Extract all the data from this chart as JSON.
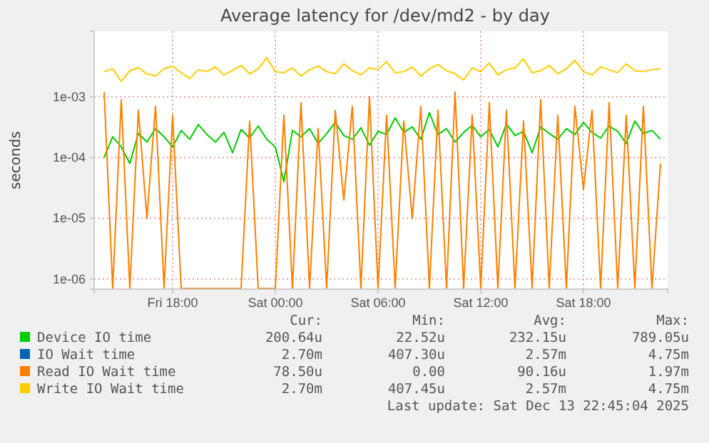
{
  "chart_data": {
    "type": "line",
    "title": "Average latency for /dev/md2 - by day",
    "ylabel": "seconds",
    "log": "y",
    "xlim": [
      "2025-12-12T13:25",
      "2025-12-13T22:55"
    ],
    "xticks": [
      {
        "value": "2025-12-12T18:00",
        "label": "Fri 18:00"
      },
      {
        "value": "2025-12-13T00:00",
        "label": "Sat 00:00"
      },
      {
        "value": "2025-12-13T06:00",
        "label": "Sat 06:00"
      },
      {
        "value": "2025-12-13T12:00",
        "label": "Sat 12:00"
      },
      {
        "value": "2025-12-13T18:00",
        "label": "Sat 18:00"
      }
    ],
    "ylim": [
      6.8e-07,
      0.012
    ],
    "yticks": [
      {
        "value": 1e-06,
        "label": "1e-06"
      },
      {
        "value": 1e-05,
        "label": "1e-05"
      },
      {
        "value": 0.0001,
        "label": "1e-04"
      },
      {
        "value": 0.001,
        "label": "1e-03"
      }
    ],
    "grid": true,
    "legend": "bottom",
    "line_style": "solid",
    "marker": "none",
    "x": [
      "2025-12-12T14:00",
      "2025-12-12T14:30",
      "2025-12-12T15:00",
      "2025-12-12T15:30",
      "2025-12-12T16:00",
      "2025-12-12T16:30",
      "2025-12-12T17:00",
      "2025-12-12T17:30",
      "2025-12-12T18:00",
      "2025-12-12T18:30",
      "2025-12-12T19:00",
      "2025-12-12T19:30",
      "2025-12-12T20:00",
      "2025-12-12T20:30",
      "2025-12-12T21:00",
      "2025-12-12T21:30",
      "2025-12-12T22:00",
      "2025-12-12T22:30",
      "2025-12-12T23:00",
      "2025-12-12T23:30",
      "2025-12-13T00:00",
      "2025-12-13T00:30",
      "2025-12-13T01:00",
      "2025-12-13T01:30",
      "2025-12-13T02:00",
      "2025-12-13T02:30",
      "2025-12-13T03:00",
      "2025-12-13T03:30",
      "2025-12-13T04:00",
      "2025-12-13T04:30",
      "2025-12-13T05:00",
      "2025-12-13T05:30",
      "2025-12-13T06:00",
      "2025-12-13T06:30",
      "2025-12-13T07:00",
      "2025-12-13T07:30",
      "2025-12-13T08:00",
      "2025-12-13T08:30",
      "2025-12-13T09:00",
      "2025-12-13T09:30",
      "2025-12-13T10:00",
      "2025-12-13T10:30",
      "2025-12-13T11:00",
      "2025-12-13T11:30",
      "2025-12-13T12:00",
      "2025-12-13T12:30",
      "2025-12-13T13:00",
      "2025-12-13T13:30",
      "2025-12-13T14:00",
      "2025-12-13T14:30",
      "2025-12-13T15:00",
      "2025-12-13T15:30",
      "2025-12-13T16:00",
      "2025-12-13T16:30",
      "2025-12-13T17:00",
      "2025-12-13T17:30",
      "2025-12-13T18:00",
      "2025-12-13T18:30",
      "2025-12-13T19:00",
      "2025-12-13T19:30",
      "2025-12-13T20:00",
      "2025-12-13T20:30",
      "2025-12-13T21:00",
      "2025-12-13T21:30",
      "2025-12-13T22:00",
      "2025-12-13T22:30"
    ],
    "series": [
      {
        "name": "Device IO time",
        "color": "#00cc00",
        "values": [
          0.0001,
          0.00022,
          0.00015,
          8e-05,
          0.00025,
          0.00018,
          0.0003,
          0.00022,
          0.00015,
          0.00028,
          0.0002,
          0.00035,
          0.00024,
          0.00018,
          0.00026,
          0.00012,
          0.00029,
          0.00021,
          0.00033,
          0.0002,
          0.00015,
          4e-05,
          0.00028,
          0.00022,
          0.0003,
          0.00017,
          0.00025,
          0.00038,
          0.00023,
          0.0002,
          0.00031,
          0.00016,
          0.00027,
          0.00024,
          0.00045,
          0.00026,
          0.00032,
          0.0002,
          0.00055,
          0.00024,
          0.0003,
          0.00018,
          0.00026,
          0.00034,
          0.00022,
          0.00029,
          0.00015,
          0.00036,
          0.00023,
          0.00027,
          0.00012,
          0.00032,
          0.00025,
          0.0002,
          0.0003,
          0.00024,
          0.00038,
          0.00026,
          0.00021,
          0.00033,
          0.00027,
          0.00017,
          0.0004,
          0.00025,
          0.00028,
          0.0002
        ]
      },
      {
        "name": "IO Wait time",
        "color": "#0066b3",
        "values": [
          null,
          null,
          null,
          null,
          null,
          null,
          null,
          null,
          null,
          null,
          null,
          null,
          null,
          null,
          null,
          null,
          null,
          null,
          null,
          null,
          null,
          null,
          null,
          null,
          null,
          null,
          null,
          null,
          null,
          null,
          null,
          null,
          null,
          null,
          null,
          null,
          null,
          null,
          null,
          null,
          null,
          null,
          null,
          null,
          null,
          null,
          null,
          null,
          null,
          null,
          null,
          null,
          null,
          null,
          null,
          null,
          null,
          null,
          null,
          null,
          null,
          null,
          null,
          null,
          null,
          null
        ]
      },
      {
        "name": "Read IO Wait time",
        "color": "#ff8000",
        "values": [
          0.0012,
          7e-07,
          0.0009,
          7e-07,
          0.0006,
          1e-05,
          0.0007,
          7e-07,
          0.0005,
          7e-07,
          7e-07,
          7e-07,
          7e-07,
          7e-07,
          7e-07,
          7e-07,
          7e-07,
          0.0004,
          7e-07,
          7e-07,
          7e-07,
          0.0005,
          7e-07,
          0.0008,
          7e-07,
          0.0003,
          7e-07,
          0.0006,
          2e-05,
          0.0007,
          7e-07,
          0.001,
          7e-07,
          0.0005,
          7e-07,
          0.0004,
          1e-05,
          0.0007,
          7e-07,
          0.0006,
          7e-07,
          0.0012,
          7e-07,
          0.0005,
          7e-07,
          0.0008,
          7e-07,
          0.0006,
          7e-07,
          0.0004,
          7e-07,
          0.0009,
          7e-07,
          0.0005,
          7e-07,
          0.0007,
          3e-05,
          0.0006,
          7e-07,
          0.0008,
          7e-07,
          0.0005,
          7e-07,
          0.0007,
          7e-07,
          8e-05
        ]
      },
      {
        "name": "Write IO Wait time",
        "color": "#ffcc00",
        "values": [
          0.0026,
          0.0029,
          0.0018,
          0.0027,
          0.003,
          0.0024,
          0.0022,
          0.0029,
          0.0032,
          0.0025,
          0.002,
          0.0028,
          0.0026,
          0.0031,
          0.0023,
          0.0027,
          0.0033,
          0.0024,
          0.0029,
          0.0044,
          0.0026,
          0.0025,
          0.003,
          0.0022,
          0.0028,
          0.0032,
          0.0026,
          0.0024,
          0.0035,
          0.0027,
          0.0023,
          0.003,
          0.0028,
          0.0038,
          0.0025,
          0.0026,
          0.0031,
          0.0022,
          0.0029,
          0.0034,
          0.0027,
          0.0024,
          0.0019,
          0.003,
          0.0026,
          0.0036,
          0.0023,
          0.0028,
          0.003,
          0.0042,
          0.0025,
          0.0027,
          0.0033,
          0.0024,
          0.0029,
          0.004,
          0.0026,
          0.0023,
          0.0031,
          0.0028,
          0.0025,
          0.0035,
          0.0027,
          0.0026,
          0.0028,
          0.0029
        ]
      }
    ],
    "annotations": [
      "Cur:",
      "Min:",
      "Avg:",
      "Max:",
      "200.64u",
      "22.52u",
      "232.15u",
      "789.05u",
      "2.70m",
      "407.30u",
      "2.57m",
      "4.75m",
      "78.50u",
      "0.00",
      "90.16u",
      "1.97m",
      "2.70m",
      "407.45u",
      "2.57m",
      "4.75m",
      "Last update: Sat Dec 13 22:45:04 2025"
    ]
  }
}
